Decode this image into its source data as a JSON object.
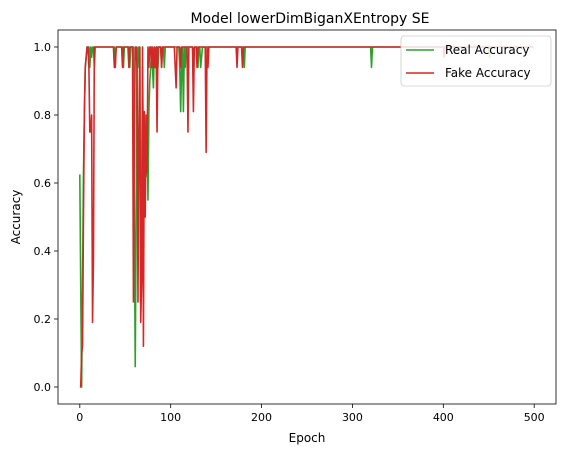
{
  "chart_data": {
    "type": "line",
    "title": "Model lowerDimBiganXEntropy SE",
    "xlabel": "Epoch",
    "ylabel": "Accuracy",
    "xlim": [
      -24,
      524
    ],
    "ylim": [
      -0.05,
      1.05
    ],
    "xticks": [
      0,
      100,
      200,
      300,
      400,
      500
    ],
    "yticks": [
      0.0,
      0.2,
      0.4,
      0.6,
      0.8,
      1.0
    ],
    "grid": false,
    "legend": "top-right",
    "series": [
      {
        "name": "Real Accuracy",
        "color": "#2ca02c",
        "points": [
          [
            0,
            0.625
          ],
          [
            1,
            0.3
          ],
          [
            2,
            0.0
          ],
          [
            3,
            0.3
          ],
          [
            4,
            0.62
          ],
          [
            5,
            0.8
          ],
          [
            6,
            0.94
          ],
          [
            7,
            0.97
          ],
          [
            8,
            1.0
          ],
          [
            10,
            1.0
          ],
          [
            11,
            0.94
          ],
          [
            12,
            1.0
          ],
          [
            13,
            0.97
          ],
          [
            14,
            1.0
          ],
          [
            15,
            1.0
          ],
          [
            16,
            0.94
          ],
          [
            17,
            1.0
          ],
          [
            20,
            1.0
          ],
          [
            38,
            1.0
          ],
          [
            39,
            0.94
          ],
          [
            40,
            1.0
          ],
          [
            47,
            1.0
          ],
          [
            48,
            0.94
          ],
          [
            49,
            1.0
          ],
          [
            54,
            1.0
          ],
          [
            55,
            0.94
          ],
          [
            56,
            1.0
          ],
          [
            59,
            1.0
          ],
          [
            60,
            0.5
          ],
          [
            61,
            0.06
          ],
          [
            62,
            0.5
          ],
          [
            63,
            1.0
          ],
          [
            64,
            0.94
          ],
          [
            65,
            1.0
          ],
          [
            66,
            1.0
          ],
          [
            67,
            0.25
          ],
          [
            68,
            0.5
          ],
          [
            69,
            0.94
          ],
          [
            70,
            0.7
          ],
          [
            71,
            0.5
          ],
          [
            72,
            0.69
          ],
          [
            73,
            0.62
          ],
          [
            74,
            0.75
          ],
          [
            75,
            0.55
          ],
          [
            76,
            0.81
          ],
          [
            77,
            0.9
          ],
          [
            78,
            0.94
          ],
          [
            79,
            1.0
          ],
          [
            80,
            0.94
          ],
          [
            81,
            0.88
          ],
          [
            82,
            1.0
          ],
          [
            83,
            0.94
          ],
          [
            84,
            1.0
          ],
          [
            85,
            1.0
          ],
          [
            86,
            0.94
          ],
          [
            87,
            1.0
          ],
          [
            89,
            1.0
          ],
          [
            90,
            0.94
          ],
          [
            91,
            1.0
          ],
          [
            92,
            1.0
          ],
          [
            93,
            0.94
          ],
          [
            94,
            1.0
          ],
          [
            109,
            1.0
          ],
          [
            110,
            0.94
          ],
          [
            111,
            0.81
          ],
          [
            112,
            0.94
          ],
          [
            113,
            1.0
          ],
          [
            114,
            0.81
          ],
          [
            115,
            1.0
          ],
          [
            116,
            0.94
          ],
          [
            117,
            1.0
          ],
          [
            124,
            1.0
          ],
          [
            125,
            0.94
          ],
          [
            126,
            1.0
          ],
          [
            129,
            1.0
          ],
          [
            130,
            0.94
          ],
          [
            131,
            1.0
          ],
          [
            132,
            1.0
          ],
          [
            133,
            0.94
          ],
          [
            134,
            0.97
          ],
          [
            135,
            1.0
          ],
          [
            180,
            1.0
          ],
          [
            181,
            0.94
          ],
          [
            182,
            1.0
          ],
          [
            320,
            1.0
          ],
          [
            321,
            0.94
          ],
          [
            322,
            1.0
          ],
          [
            450,
            1.0
          ],
          [
            451,
            0.97
          ],
          [
            452,
            1.0
          ],
          [
            499,
            1.0
          ]
        ]
      },
      {
        "name": "Fake Accuracy",
        "color": "#d62728",
        "points": [
          [
            0,
            0.0
          ],
          [
            1,
            0.0
          ],
          [
            2,
            0.1
          ],
          [
            3,
            0.12
          ],
          [
            4,
            0.5
          ],
          [
            5,
            0.8
          ],
          [
            6,
            0.94
          ],
          [
            7,
            0.97
          ],
          [
            8,
            1.0
          ],
          [
            9,
            1.0
          ],
          [
            10,
            0.94
          ],
          [
            11,
            0.75
          ],
          [
            12,
            0.75
          ],
          [
            13,
            0.8
          ],
          [
            14,
            0.19
          ],
          [
            15,
            0.37
          ],
          [
            16,
            1.0
          ],
          [
            37,
            1.0
          ],
          [
            38,
            0.94
          ],
          [
            39,
            0.94
          ],
          [
            40,
            1.0
          ],
          [
            46,
            1.0
          ],
          [
            47,
            0.94
          ],
          [
            48,
            1.0
          ],
          [
            53,
            1.0
          ],
          [
            54,
            0.94
          ],
          [
            55,
            1.0
          ],
          [
            58,
            1.0
          ],
          [
            59,
            0.25
          ],
          [
            60,
            0.75
          ],
          [
            61,
            1.0
          ],
          [
            62,
            1.0
          ],
          [
            63,
            0.94
          ],
          [
            64,
            0.25
          ],
          [
            65,
            0.75
          ],
          [
            66,
            1.0
          ],
          [
            67,
            0.19
          ],
          [
            68,
            0.31
          ],
          [
            69,
            1.0
          ],
          [
            70,
            0.12
          ],
          [
            71,
            0.81
          ],
          [
            72,
            0.5
          ],
          [
            73,
            0.8
          ],
          [
            74,
            0.63
          ],
          [
            75,
            1.0
          ],
          [
            76,
            0.94
          ],
          [
            77,
            1.0
          ],
          [
            78,
            1.0
          ],
          [
            79,
            0.94
          ],
          [
            80,
            1.0
          ],
          [
            81,
            0.94
          ],
          [
            82,
            1.0
          ],
          [
            83,
            0.94
          ],
          [
            84,
            1.0
          ],
          [
            85,
            0.75
          ],
          [
            86,
            1.0
          ],
          [
            89,
            1.0
          ],
          [
            90,
            0.94
          ],
          [
            91,
            1.0
          ],
          [
            104,
            1.0
          ],
          [
            105,
            0.94
          ],
          [
            106,
            0.88
          ],
          [
            107,
            1.0
          ],
          [
            110,
            1.0
          ],
          [
            111,
            0.94
          ],
          [
            112,
            1.0
          ],
          [
            118,
            1.0
          ],
          [
            119,
            0.75
          ],
          [
            120,
            1.0
          ],
          [
            124,
            1.0
          ],
          [
            125,
            0.81
          ],
          [
            126,
            1.0
          ],
          [
            128,
            1.0
          ],
          [
            129,
            0.94
          ],
          [
            130,
            1.0
          ],
          [
            138,
            1.0
          ],
          [
            139,
            0.69
          ],
          [
            140,
            1.0
          ],
          [
            141,
            0.94
          ],
          [
            142,
            1.0
          ],
          [
            172,
            1.0
          ],
          [
            173,
            0.94
          ],
          [
            174,
            1.0
          ],
          [
            178,
            1.0
          ],
          [
            179,
            0.94
          ],
          [
            180,
            1.0
          ],
          [
            400,
            1.0
          ],
          [
            401,
            0.97
          ],
          [
            402,
            1.0
          ],
          [
            499,
            1.0
          ]
        ]
      }
    ]
  }
}
